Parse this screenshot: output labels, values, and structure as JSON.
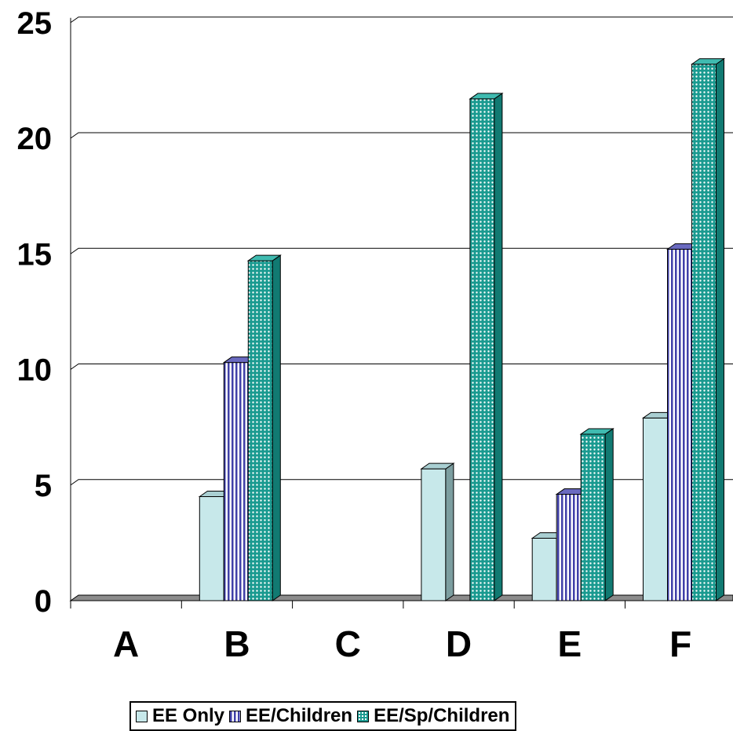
{
  "chart_data": {
    "type": "bar",
    "categories": [
      "A",
      "B",
      "C",
      "D",
      "E",
      "F"
    ],
    "ylim": [
      0,
      25
    ],
    "yticks": [
      "0",
      "5",
      "10",
      "15",
      "20",
      "25"
    ],
    "grid": true,
    "legend_position": "bottom",
    "series": [
      {
        "name": "EE Only",
        "values": [
          0,
          4.5,
          0,
          5.7,
          2.7,
          7.9
        ],
        "color": "#c7e8ea"
      },
      {
        "name": "EE/Children",
        "values": [
          0,
          10.3,
          0,
          0,
          4.6,
          15.2
        ],
        "color": "#4040a8"
      },
      {
        "name": "EE/Sp/Children",
        "values": [
          0,
          14.7,
          0,
          21.7,
          7.2,
          23.2
        ],
        "color": "#1a9a90"
      }
    ]
  }
}
